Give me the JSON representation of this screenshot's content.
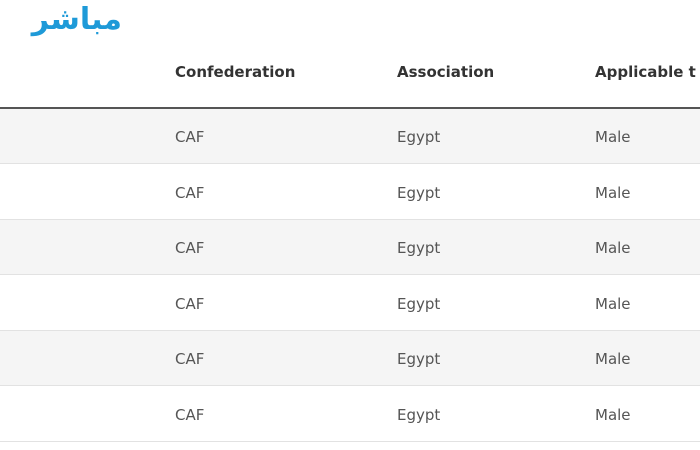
{
  "watermark": "مباشر",
  "table": {
    "header": [
      "Confederation",
      "Association",
      "Applicable t"
    ],
    "rows": [
      [
        "CAF",
        "Egypt",
        "Male"
      ],
      [
        "CAF",
        "Egypt",
        "Male"
      ],
      [
        "CAF",
        "Egypt",
        "Male"
      ],
      [
        "CAF",
        "Egypt",
        "Male"
      ],
      [
        "CAF",
        "Egypt",
        "Male"
      ],
      [
        "CAF",
        "Egypt",
        "Male"
      ]
    ]
  }
}
